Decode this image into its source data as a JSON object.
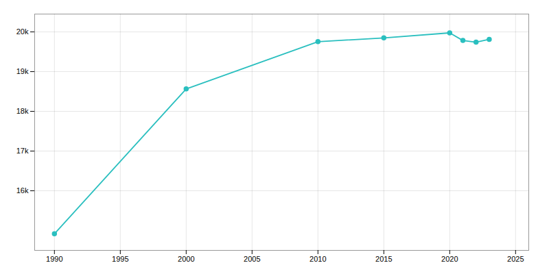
{
  "chart_data": {
    "type": "line",
    "x": [
      1990,
      2000,
      2010,
      2015,
      2020,
      2021,
      2022,
      2023
    ],
    "values": [
      14917,
      18564,
      19754,
      19849,
      19976,
      19784,
      19741,
      19812
    ],
    "color": "#2abfbf",
    "marker": "circle",
    "xlim": [
      1988.5,
      2026
    ],
    "ylim": [
      14500,
      20450
    ],
    "xticks": [
      1990,
      1995,
      2000,
      2005,
      2010,
      2015,
      2020,
      2025
    ],
    "yticks": [
      {
        "value": 16000,
        "label": "16k"
      },
      {
        "value": 17000,
        "label": "17k"
      },
      {
        "value": 18000,
        "label": "18k"
      },
      {
        "value": 19000,
        "label": "19k"
      },
      {
        "value": 20000,
        "label": "20k"
      }
    ],
    "grid": true
  }
}
